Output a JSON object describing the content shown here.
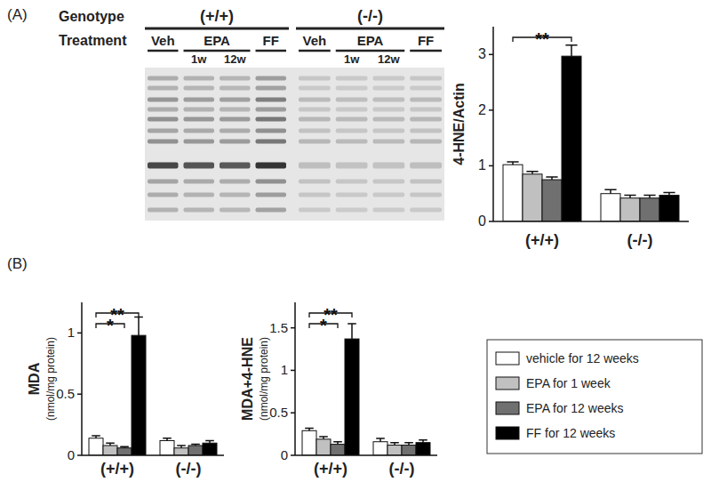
{
  "chart_data": [
    {
      "type": "bar",
      "y_label": [
        "4-HNE/Actin"
      ],
      "categories": [
        "(+/+)",
        "(-/-)"
      ],
      "ylim": [
        0,
        3.5
      ],
      "yticks": [
        0,
        1,
        2,
        3
      ],
      "grid": false,
      "series": [
        {
          "color": "#ffffff",
          "values": [
            1.02,
            0.5
          ],
          "errors": [
            0.05,
            0.07
          ]
        },
        {
          "color": "#c0c0c0",
          "values": [
            0.85,
            0.42
          ],
          "errors": [
            0.05,
            0.05
          ]
        },
        {
          "color": "#707070",
          "values": [
            0.75,
            0.42
          ],
          "errors": [
            0.05,
            0.05
          ]
        },
        {
          "color": "#000000",
          "values": [
            2.97,
            0.47
          ],
          "errors": [
            0.2,
            0.05
          ]
        }
      ],
      "annotations": [
        {
          "text": "**",
          "category": 0,
          "between": [
            0,
            3
          ]
        }
      ]
    },
    {
      "type": "bar",
      "y_label": [
        "MDA",
        "(nmol/mg protein)"
      ],
      "categories": [
        "(+/+)",
        "(-/-)"
      ],
      "ylim": [
        0,
        1.25
      ],
      "yticks": [
        0,
        0.5,
        1
      ],
      "grid": false,
      "legend": "right",
      "series": [
        {
          "name": "vehicle for 12 weeks",
          "color": "#ffffff",
          "values": [
            0.14,
            0.12
          ],
          "errors": [
            0.02,
            0.02
          ]
        },
        {
          "name": "EPA for 1 week",
          "color": "#c0c0c0",
          "values": [
            0.08,
            0.06
          ],
          "errors": [
            0.02,
            0.02
          ]
        },
        {
          "name": "EPA for 12 weeks",
          "color": "#707070",
          "values": [
            0.06,
            0.08
          ],
          "errors": [
            0.01,
            0.01
          ]
        },
        {
          "name": "FF for 12 weeks",
          "color": "#000000",
          "values": [
            0.98,
            0.1
          ],
          "errors": [
            0.15,
            0.02
          ]
        }
      ],
      "annotations": [
        {
          "text": "**",
          "category": 0,
          "between": [
            0,
            3
          ]
        },
        {
          "text": "*",
          "category": 0,
          "between": [
            0,
            2
          ]
        }
      ]
    },
    {
      "type": "bar",
      "y_label": [
        "MDA+4-HNE",
        "(nmol/mg protein)"
      ],
      "categories": [
        "(+/+)",
        "(-/-)"
      ],
      "ylim": [
        0,
        1.8
      ],
      "yticks": [
        0,
        0.5,
        1,
        1.5
      ],
      "grid": false,
      "series": [
        {
          "color": "#ffffff",
          "values": [
            0.29,
            0.16
          ],
          "errors": [
            0.03,
            0.04
          ]
        },
        {
          "color": "#c0c0c0",
          "values": [
            0.19,
            0.12
          ],
          "errors": [
            0.03,
            0.03
          ]
        },
        {
          "color": "#707070",
          "values": [
            0.13,
            0.12
          ],
          "errors": [
            0.03,
            0.03
          ]
        },
        {
          "color": "#000000",
          "values": [
            1.37,
            0.15
          ],
          "errors": [
            0.18,
            0.03
          ]
        }
      ],
      "annotations": [
        {
          "text": "**",
          "category": 0,
          "between": [
            0,
            3
          ]
        },
        {
          "text": "*",
          "category": 0,
          "between": [
            0,
            2
          ]
        }
      ]
    }
  ],
  "panel_labels": [
    "(A)",
    "(B)"
  ],
  "blot": {
    "row_labels": [
      "Genotype",
      "Treatment"
    ],
    "genotypes": [
      "(+/+)",
      "(-/-)"
    ],
    "treatments": [
      {
        "label": "Veh"
      },
      {
        "label": "EPA",
        "subs": [
          "1w",
          "12w"
        ]
      },
      {
        "label": "FF"
      }
    ]
  }
}
